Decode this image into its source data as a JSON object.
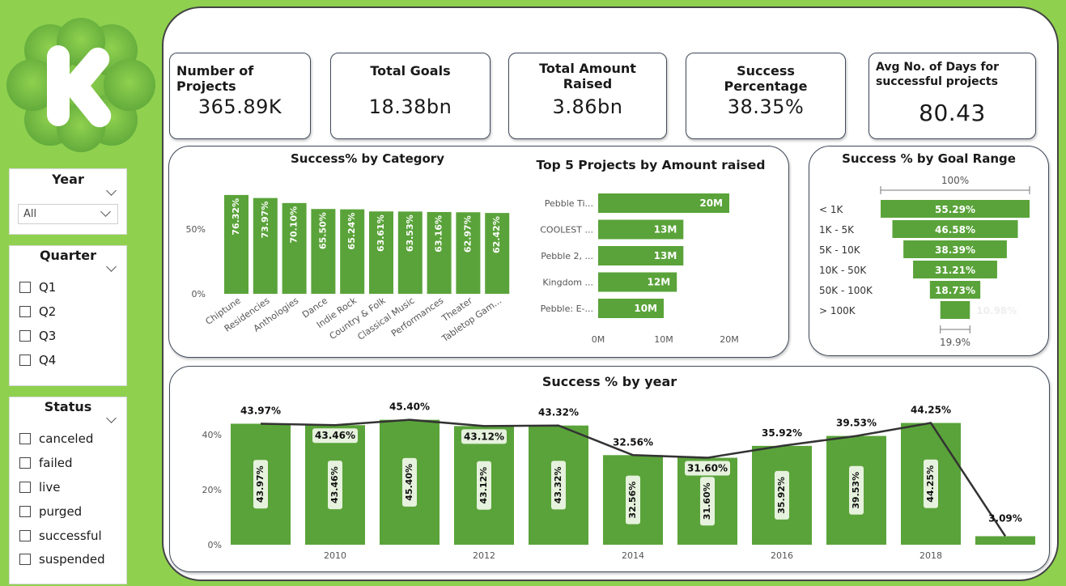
{
  "logo": {
    "letter": "K"
  },
  "filters": {
    "year": {
      "title": "Year",
      "selected": "All"
    },
    "quarter": {
      "title": "Quarter",
      "options": [
        "Q1",
        "Q2",
        "Q3",
        "Q4"
      ]
    },
    "status": {
      "title": "Status",
      "options": [
        "canceled",
        "failed",
        "live",
        "purged",
        "successful",
        "suspended"
      ]
    }
  },
  "kpis": {
    "projects": {
      "title": "Number of Projects",
      "value": "365.89K"
    },
    "goals": {
      "title": "Total Goals",
      "value": "18.38bn"
    },
    "raised": {
      "title": "Total Amount Raised",
      "value": "3.86bn"
    },
    "success": {
      "title": "Success Percentage",
      "value": "38.35%"
    },
    "days": {
      "title": "Avg No. of Days for successful projects",
      "value": "80.43"
    }
  },
  "colors": {
    "bar": "#5aa33a",
    "line": "#333333",
    "page": "#8fd14f"
  },
  "chart_data": [
    {
      "type": "bar",
      "title": "Success% by Category",
      "categories": [
        "Chiptune",
        "Residencies",
        "Anthologies",
        "Dance",
        "Indie Rock",
        "Country & Folk",
        "Classical Music",
        "Performances",
        "Theater",
        "Tabletop Gam..."
      ],
      "values": [
        76.32,
        73.97,
        70.1,
        65.5,
        65.24,
        63.61,
        63.53,
        63.16,
        62.97,
        62.42
      ],
      "labels": [
        "76.32%",
        "73.97%",
        "70.10%",
        "65.50%",
        "65.24%",
        "63.61%",
        "63.53%",
        "63.16%",
        "62.97%",
        "62.42%"
      ],
      "yticks": [
        "0%",
        "50%"
      ],
      "ylim": [
        0,
        100
      ]
    },
    {
      "type": "bar",
      "orientation": "horizontal",
      "title": "Top 5 Projects by Amount raised",
      "categories": [
        "Pebble Ti...",
        "COOLEST ...",
        "Pebble 2, ...",
        "Kingdom ...",
        "Pebble: E-..."
      ],
      "values": [
        20,
        13,
        13,
        12,
        10
      ],
      "labels": [
        "20M",
        "13M",
        "13M",
        "12M",
        "10M"
      ],
      "xticks": [
        "0M",
        "10M",
        "20M"
      ],
      "xlim": [
        0,
        20
      ]
    },
    {
      "type": "funnel",
      "title": "Success % by Goal Range",
      "categories": [
        "< 1K",
        "1K - 5K",
        "5K - 10K",
        "10K - 50K",
        "50K - 100K",
        "> 100K"
      ],
      "values": [
        55.29,
        46.58,
        38.39,
        31.21,
        18.73,
        10.98
      ],
      "labels": [
        "55.29%",
        "46.58%",
        "38.39%",
        "31.21%",
        "18.73%",
        "10.98%"
      ],
      "top_label": "100%",
      "bottom_label": "19.9%"
    },
    {
      "type": "bar+line",
      "title": "Success % by year",
      "x": [
        2009,
        2010,
        2011,
        2012,
        2013,
        2014,
        2015,
        2016,
        2017,
        2018,
        2019
      ],
      "values": [
        43.97,
        43.46,
        45.4,
        43.12,
        43.32,
        32.56,
        31.6,
        35.92,
        39.53,
        44.25,
        3.09
      ],
      "labels": [
        "43.97%",
        "43.46%",
        "45.40%",
        "43.12%",
        "43.32%",
        "32.56%",
        "31.60%",
        "35.92%",
        "39.53%",
        "44.25%",
        "3.09%"
      ],
      "xticks": [
        "2010",
        "2012",
        "2014",
        "2016",
        "2018"
      ],
      "yticks": [
        "0%",
        "20%",
        "40%"
      ],
      "ylim": [
        0,
        48
      ]
    }
  ]
}
